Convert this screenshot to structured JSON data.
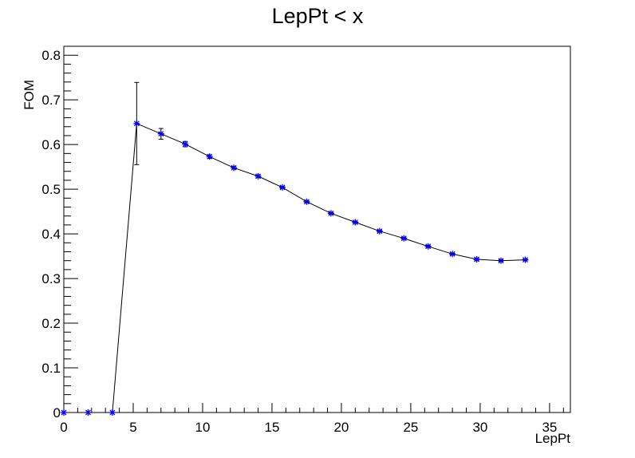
{
  "chart_data": {
    "type": "scatter",
    "title": "LepPt < x",
    "xlabel": "LepPt",
    "ylabel": "FOM",
    "xlim": [
      0,
      36.5
    ],
    "ylim": [
      0,
      0.82
    ],
    "xticks": [
      0,
      5,
      10,
      15,
      20,
      25,
      30,
      35
    ],
    "xtick_labels": [
      "0",
      "5",
      "10",
      "15",
      "20",
      "25",
      "30",
      "35"
    ],
    "yticks": [
      0,
      0.1,
      0.2,
      0.3,
      0.4,
      0.5,
      0.6,
      0.7,
      0.8
    ],
    "ytick_labels": [
      "0",
      "0.1",
      "0.2",
      "0.3",
      "0.4",
      "0.5",
      "0.6",
      "0.7",
      "0.8"
    ],
    "grid": false,
    "series": [
      {
        "marker": "star",
        "marker_color": "#0000ff",
        "line_color": "#000000",
        "points": [
          {
            "x": 0.0,
            "y": 0.0,
            "err": 0
          },
          {
            "x": 1.75,
            "y": 0.0,
            "err": 0
          },
          {
            "x": 3.5,
            "y": 0.0,
            "err": 0
          },
          {
            "x": 5.25,
            "y": 0.647,
            "err": 0.092
          },
          {
            "x": 7.0,
            "y": 0.624,
            "err": 0.012
          },
          {
            "x": 8.75,
            "y": 0.601,
            "err": 0.006
          },
          {
            "x": 10.5,
            "y": 0.573,
            "err": 0.004
          },
          {
            "x": 12.25,
            "y": 0.548,
            "err": 0.003
          },
          {
            "x": 14.0,
            "y": 0.529,
            "err": 0.003
          },
          {
            "x": 15.75,
            "y": 0.504,
            "err": 0.002
          },
          {
            "x": 17.5,
            "y": 0.472,
            "err": 0.002
          },
          {
            "x": 19.25,
            "y": 0.446,
            "err": 0.002
          },
          {
            "x": 21.0,
            "y": 0.426,
            "err": 0.002
          },
          {
            "x": 22.75,
            "y": 0.406,
            "err": 0.002
          },
          {
            "x": 24.5,
            "y": 0.39,
            "err": 0.002
          },
          {
            "x": 26.25,
            "y": 0.372,
            "err": 0.002
          },
          {
            "x": 28.0,
            "y": 0.355,
            "err": 0.002
          },
          {
            "x": 29.75,
            "y": 0.343,
            "err": 0.002
          },
          {
            "x": 31.5,
            "y": 0.34,
            "err": 0.002
          },
          {
            "x": 33.25,
            "y": 0.342,
            "err": 0.002
          }
        ]
      }
    ]
  }
}
